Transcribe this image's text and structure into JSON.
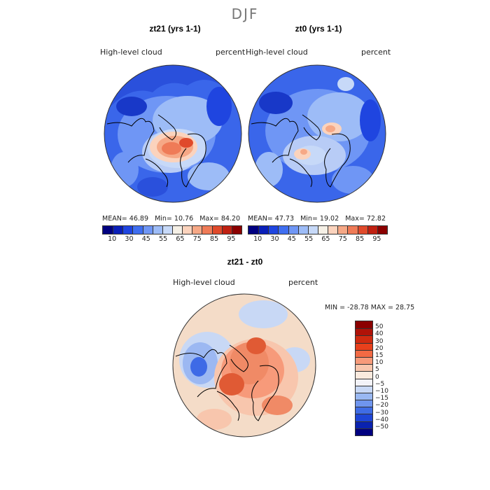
{
  "figure": {
    "season": "DJF"
  },
  "panels": [
    {
      "title": "zt21 (yrs 1-1)",
      "variable": "High-level  cloud",
      "units": "percent",
      "stats": {
        "mean_label": "MEAN=",
        "mean": "46.89",
        "min_label": "Min=",
        "min": "10.76",
        "max_label": "Max=",
        "max": "84.20"
      }
    },
    {
      "title": "zt0 (yrs 1-1)",
      "variable": "High-level  cloud",
      "units": "percent",
      "stats": {
        "mean_label": "MEAN=",
        "mean": "47.73",
        "min_label": "Min=",
        "min": "19.02",
        "max_label": "Max=",
        "max": "72.82"
      }
    }
  ],
  "diff_panel": {
    "title": "zt21 - zt0",
    "variable": "High-level  cloud",
    "units": "percent",
    "stats_text": "MIN = -28.78  MAX =  28.75"
  },
  "colorbar_abs": {
    "ticks": [
      "10",
      "30",
      "45",
      "55",
      "65",
      "75",
      "85",
      "95"
    ],
    "colors": [
      "#000080",
      "#0a1fb8",
      "#1f45e0",
      "#3f6ef0",
      "#6f96f5",
      "#9dbcf7",
      "#c7d9f8",
      "#f5f0e6",
      "#fbd3bd",
      "#f6a886",
      "#ef7b57",
      "#e04a2b",
      "#c02112",
      "#8b0000"
    ]
  },
  "colorbar_diff": {
    "ticks": [
      "50",
      "40",
      "30",
      "20",
      "15",
      "10",
      "5",
      "0",
      "−5",
      "−10",
      "−15",
      "−20",
      "−30",
      "−40",
      "−50"
    ],
    "colors": [
      "#8b0000",
      "#b01208",
      "#d02a10",
      "#e8401c",
      "#f26a44",
      "#f79a7a",
      "#f8c6ad",
      "#faeade",
      "#f3f3f8",
      "#c8d8f5",
      "#99b8f2",
      "#6f95ee",
      "#3f6ce5",
      "#1e45d6",
      "#0a22b0",
      "#000080"
    ]
  },
  "maps": {
    "abs_base": "#3a66ea",
    "abs_light": "#b8ccf6",
    "abs_warm": "#f0a080",
    "abs_hot": "#e0603c",
    "abs_dark": "#1838c8",
    "diff_base": "#f4dcc8",
    "diff_blue": "#9cb8f2",
    "diff_darkblue": "#3e6ae6",
    "diff_red": "#f08a66",
    "diff_darkred": "#e05a34"
  }
}
